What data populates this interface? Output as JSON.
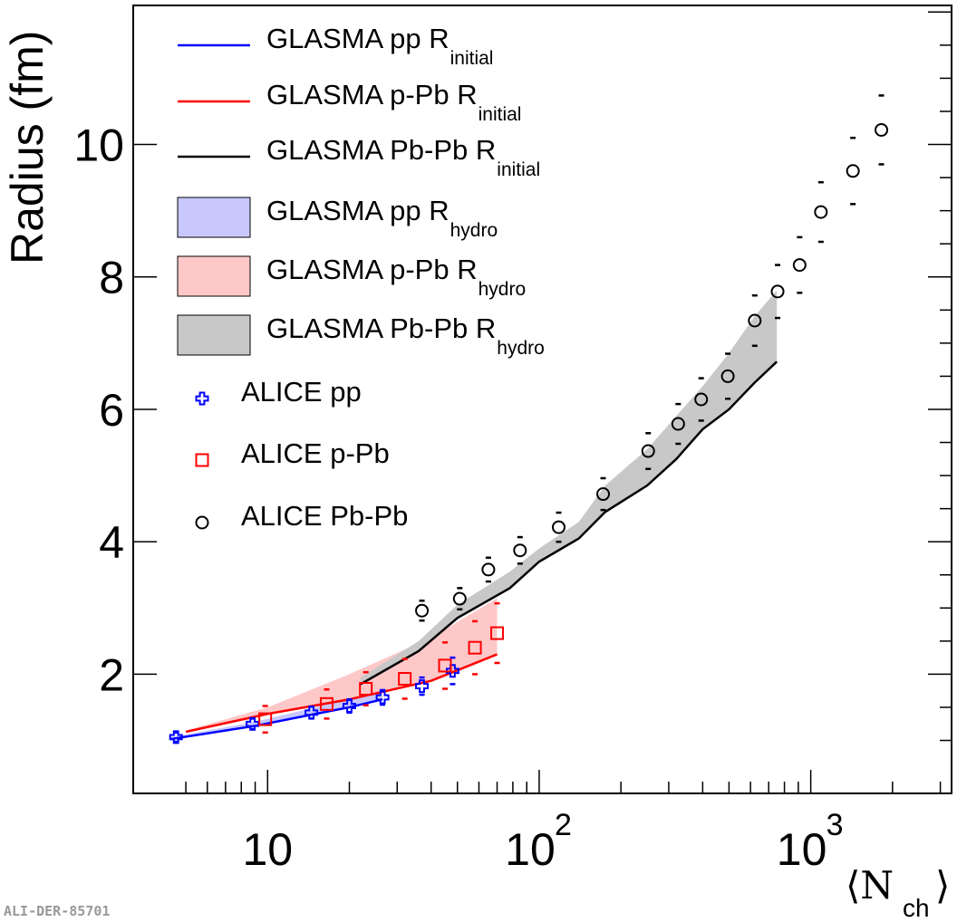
{
  "chart_data": {
    "type": "scatter",
    "xlabel": "⟨N",
    "xlabel_sub": "ch",
    "ylabel": "Radius (fm)",
    "xscale": "log",
    "xlim": [
      3.2,
      3300
    ],
    "ylim": [
      0.2,
      12.1
    ],
    "x_tick_labels": [
      "10",
      "10",
      "10"
    ],
    "x_tick_exponents": [
      "",
      "2",
      "3"
    ],
    "y_tick_labels": [
      "2",
      "4",
      "6",
      "8",
      "10"
    ],
    "legend_placement": "top-left",
    "watermark": "ALI-DER-85701",
    "series": [
      {
        "name": "GLASMA pp R",
        "sub": "initial",
        "kind": "line",
        "color": "#0000ff",
        "x": [
          4.4,
          9,
          15,
          20,
          26.5
        ],
        "y": [
          1.02,
          1.22,
          1.4,
          1.5,
          1.62
        ]
      },
      {
        "name": "GLASMA p-Pb R",
        "sub": "initial",
        "kind": "line",
        "color": "#ff0000",
        "x": [
          5,
          10,
          20,
          40,
          70
        ],
        "y": [
          1.13,
          1.4,
          1.62,
          1.9,
          2.3
        ]
      },
      {
        "name": "GLASMA Pb-Pb R",
        "sub": "initial",
        "kind": "line",
        "color": "#000000",
        "x": [
          22,
          36,
          50,
          78,
          100,
          140,
          175,
          250,
          320,
          400,
          500,
          620,
          750
        ],
        "y": [
          1.85,
          2.35,
          2.85,
          3.3,
          3.7,
          4.05,
          4.45,
          4.85,
          5.25,
          5.7,
          6.0,
          6.4,
          6.72
        ]
      },
      {
        "name": "GLASMA pp R",
        "sub": "hydro",
        "kind": "band",
        "color": "#c8c8ff",
        "x": [
          4.4,
          9,
          15,
          20,
          26.5
        ],
        "ylow": [
          1.02,
          1.22,
          1.4,
          1.5,
          1.62
        ],
        "yhigh": [
          1.05,
          1.28,
          1.5,
          1.68,
          1.85
        ]
      },
      {
        "name": "GLASMA p-Pb R",
        "sub": "hydro",
        "kind": "band",
        "color": "#ffc8c8",
        "x": [
          5,
          10,
          20,
          40,
          70
        ],
        "ylow": [
          1.13,
          1.4,
          1.62,
          1.9,
          2.3
        ],
        "yhigh": [
          1.15,
          1.5,
          2.0,
          2.55,
          3.15
        ]
      },
      {
        "name": "GLASMA Pb-Pb R",
        "sub": "hydro",
        "kind": "band",
        "color": "#c8c8c8",
        "x": [
          22,
          36,
          50,
          78,
          100,
          140,
          175,
          250,
          320,
          400,
          500,
          620,
          750
        ],
        "ylow": [
          1.85,
          2.35,
          2.85,
          3.3,
          3.7,
          4.05,
          4.45,
          4.85,
          5.25,
          5.7,
          6.0,
          6.4,
          6.72
        ],
        "yhigh": [
          1.95,
          2.5,
          3.05,
          3.55,
          3.9,
          4.3,
          4.85,
          5.4,
          5.9,
          6.35,
          6.85,
          7.4,
          7.8
        ]
      },
      {
        "name": "ALICE pp",
        "kind": "points",
        "marker": "cross",
        "color": "#0000ff",
        "x": [
          4.6,
          8.8,
          14.5,
          20,
          26.5,
          37,
          48
        ],
        "y": [
          1.05,
          1.25,
          1.42,
          1.52,
          1.65,
          1.82,
          2.05
        ],
        "ysys": [
          0.07,
          0.08,
          0.09,
          0.1,
          0.11,
          0.13,
          0.2
        ]
      },
      {
        "name": "ALICE p-Pb",
        "kind": "points",
        "marker": "square",
        "color": "#ff0000",
        "x": [
          9.8,
          16.5,
          23,
          32,
          45,
          58,
          70
        ],
        "y": [
          1.32,
          1.55,
          1.78,
          1.93,
          2.13,
          2.4,
          2.62
        ],
        "ysys": [
          0.2,
          0.22,
          0.25,
          0.3,
          0.35,
          0.4,
          0.45
        ]
      },
      {
        "name": "ALICE Pb-Pb",
        "kind": "points",
        "marker": "circle",
        "color": "#000000",
        "x": [
          37,
          51,
          65,
          85,
          118,
          172,
          252,
          325,
          395,
          495,
          622,
          755,
          910,
          1090,
          1430,
          1820
        ],
        "y": [
          2.96,
          3.14,
          3.58,
          3.87,
          4.22,
          4.72,
          5.37,
          5.78,
          6.15,
          6.5,
          7.34,
          7.78,
          8.18,
          8.98,
          9.6,
          10.22
        ],
        "ysys": [
          0.15,
          0.16,
          0.18,
          0.2,
          0.22,
          0.24,
          0.27,
          0.3,
          0.32,
          0.34,
          0.38,
          0.4,
          0.42,
          0.45,
          0.5,
          0.52
        ]
      }
    ]
  }
}
